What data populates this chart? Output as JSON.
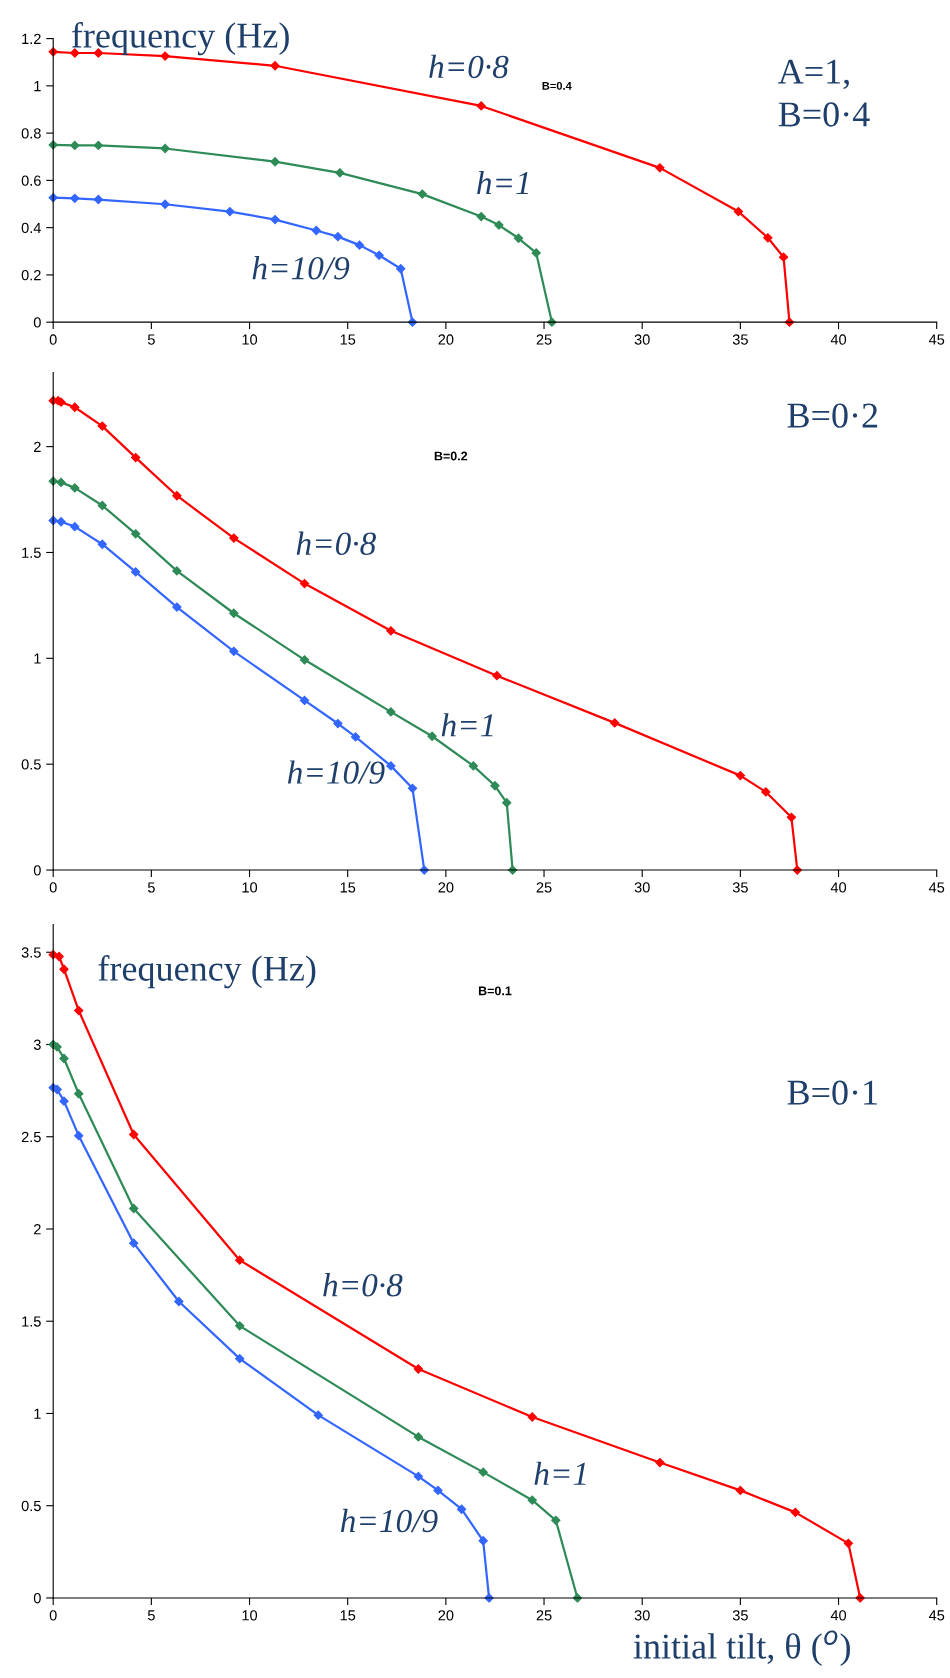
{
  "chart_data": [
    {
      "type": "line",
      "ylabel": "frequency (Hz)",
      "annotations": [
        "A=1,\nB=0·4",
        "B=0.4"
      ],
      "xlim": [
        0,
        45
      ],
      "xticks": [
        0,
        5,
        10,
        15,
        20,
        25,
        30,
        35,
        40,
        45
      ],
      "ylim": [
        0,
        1.2
      ],
      "yticks": [
        0,
        0.2,
        0.4,
        0.6,
        0.8,
        1,
        1.2
      ],
      "grid": false,
      "legend": false,
      "marker": "diamond",
      "line_style": "solid",
      "series": [
        {
          "name": "h=0·8",
          "color": "#ff0000",
          "x": [
            0,
            1.1,
            2.3,
            5.7,
            11.3,
            21.8,
            30.9,
            34.9,
            36.4,
            37.2,
            37.5
          ],
          "values": [
            1.144,
            1.139,
            1.139,
            1.126,
            1.085,
            0.915,
            0.653,
            0.468,
            0.357,
            0.275,
            0
          ]
        },
        {
          "name": "h=1",
          "color": "#2e8b57",
          "x": [
            0,
            1.1,
            2.3,
            5.7,
            11.3,
            14.6,
            18.8,
            21.8,
            22.7,
            23.7,
            24.6,
            25.4
          ],
          "values": [
            0.75,
            0.748,
            0.748,
            0.735,
            0.679,
            0.632,
            0.542,
            0.447,
            0.411,
            0.355,
            0.293,
            0
          ]
        },
        {
          "name": "h=10/9",
          "color": "#3366ff",
          "x": [
            0,
            1.1,
            2.3,
            5.7,
            9.0,
            11.3,
            13.4,
            14.5,
            15.6,
            16.6,
            17.7,
            18.3
          ],
          "values": [
            0.527,
            0.524,
            0.519,
            0.499,
            0.468,
            0.434,
            0.388,
            0.362,
            0.326,
            0.283,
            0.226,
            0
          ]
        }
      ]
    },
    {
      "type": "line",
      "annotations": [
        "B=0·2",
        "B=0.2"
      ],
      "xlim": [
        0,
        45
      ],
      "xticks": [
        0,
        5,
        10,
        15,
        20,
        25,
        30,
        35,
        40,
        45
      ],
      "ylim": [
        0,
        2.35
      ],
      "yticks": [
        0,
        0.5,
        1,
        1.5,
        2
      ],
      "grid": false,
      "legend": false,
      "marker": "diamond",
      "line_style": "solid",
      "series": [
        {
          "name": "h=0·8",
          "color": "#ff0000",
          "x": [
            0,
            0.25,
            0.4,
            1.1,
            2.5,
            4.2,
            6.3,
            9.2,
            12.8,
            17.2,
            22.6,
            28.6,
            35.0,
            36.3,
            37.6,
            37.9
          ],
          "values": [
            2.217,
            2.217,
            2.21,
            2.186,
            2.097,
            1.948,
            1.768,
            1.568,
            1.353,
            1.13,
            0.918,
            0.695,
            0.446,
            0.369,
            0.249,
            0
          ]
        },
        {
          "name": "h=1",
          "color": "#2e8b57",
          "x": [
            0,
            0.4,
            1.1,
            2.5,
            4.2,
            6.3,
            9.2,
            12.8,
            17.2,
            19.3,
            21.4,
            22.5,
            23.1,
            23.4
          ],
          "values": [
            1.837,
            1.831,
            1.805,
            1.722,
            1.588,
            1.413,
            1.213,
            0.993,
            0.747,
            0.632,
            0.492,
            0.398,
            0.318,
            0
          ]
        },
        {
          "name": "h=10/9",
          "color": "#3366ff",
          "x": [
            0,
            0.4,
            1.1,
            2.5,
            4.2,
            6.3,
            9.2,
            12.8,
            14.5,
            15.4,
            17.2,
            18.3,
            18.9
          ],
          "values": [
            1.651,
            1.645,
            1.622,
            1.539,
            1.408,
            1.242,
            1.033,
            0.801,
            0.692,
            0.629,
            0.492,
            0.386,
            0
          ]
        }
      ]
    },
    {
      "type": "line",
      "ylabel": "frequency (Hz)",
      "xlabel": "initial tilt, θ ($^{o}$)",
      "annotations": [
        "B=0·1",
        "B=0.1"
      ],
      "xlim": [
        0,
        45
      ],
      "xticks": [
        0,
        5,
        10,
        15,
        20,
        25,
        30,
        35,
        40,
        45
      ],
      "ylim": [
        0,
        3.65
      ],
      "yticks": [
        0,
        0.5,
        1,
        1.5,
        2,
        2.5,
        3,
        3.5
      ],
      "grid": false,
      "legend": false,
      "marker": "diamond",
      "line_style": "solid",
      "series": [
        {
          "name": "h=0·8",
          "color": "#ff0000",
          "x": [
            0,
            0.3,
            0.55,
            1.3,
            4.1,
            9.5,
            18.6,
            24.4,
            30.9,
            35.0,
            37.8,
            40.5,
            41.1
          ],
          "values": [
            3.487,
            3.477,
            3.408,
            3.184,
            2.512,
            1.831,
            1.241,
            0.981,
            0.734,
            0.583,
            0.464,
            0.296,
            0
          ]
        },
        {
          "name": "h=1",
          "color": "#2e8b57",
          "x": [
            0,
            0.2,
            0.55,
            1.3,
            4.1,
            9.5,
            18.6,
            21.9,
            24.4,
            25.6,
            26.7
          ],
          "values": [
            3.0,
            2.987,
            2.924,
            2.733,
            2.111,
            1.475,
            0.873,
            0.682,
            0.53,
            0.421,
            0
          ]
        },
        {
          "name": "h=10/9",
          "color": "#3366ff",
          "x": [
            0,
            0.2,
            0.55,
            1.3,
            4.1,
            6.4,
            9.5,
            13.5,
            18.6,
            19.6,
            20.8,
            21.9,
            22.2
          ],
          "values": [
            2.766,
            2.756,
            2.693,
            2.506,
            1.923,
            1.607,
            1.297,
            0.991,
            0.659,
            0.583,
            0.481,
            0.31,
            0
          ]
        }
      ]
    }
  ]
}
